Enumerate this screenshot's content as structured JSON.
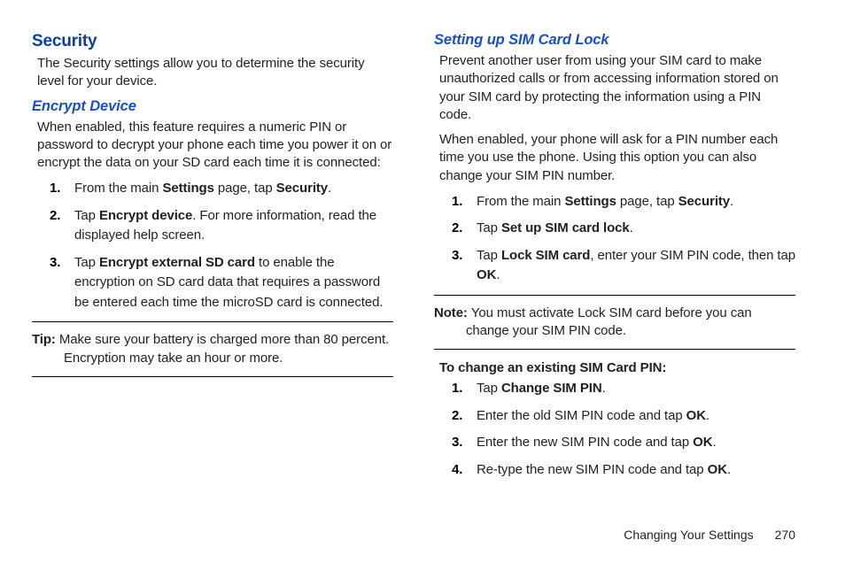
{
  "left": {
    "h1": "Security",
    "intro": "The Security settings allow you to determine the security level for your device.",
    "h2": "Encrypt Device",
    "desc": "When enabled, this feature requires a numeric PIN or password to decrypt your phone each time you power it on or encrypt the data on your SD card each time it is connected:",
    "steps": {
      "s1_a": "From the main ",
      "s1_b": "Settings",
      "s1_c": " page, tap ",
      "s1_d": "Security",
      "s1_e": ".",
      "s2_a": "Tap ",
      "s2_b": "Encrypt device",
      "s2_c": ". For more information, read the displayed help screen.",
      "s3_a": "Tap ",
      "s3_b": "Encrypt external SD card",
      "s3_c": " to enable the encryption on SD card data that requires a password be entered each time the microSD card is connected."
    },
    "tip_label": "Tip: ",
    "tip_text": "Make sure your battery is charged more than 80 percent. Encryption may take an hour or more."
  },
  "right": {
    "h2": "Setting up SIM Card Lock",
    "p1": "Prevent another user from using your SIM card to make unauthorized calls or from accessing information stored on your SIM card by protecting the information using a PIN code.",
    "p2": "When enabled, your phone will ask for a PIN number each time you use the phone. Using this option you can also change your SIM PIN number.",
    "steps": {
      "s1_a": "From the main ",
      "s1_b": "Settings",
      "s1_c": " page, tap ",
      "s1_d": "Security",
      "s1_e": ".",
      "s2_a": "Tap ",
      "s2_b": "Set up SIM card lock",
      "s2_c": ".",
      "s3_a": "Tap ",
      "s3_b": "Lock SIM card",
      "s3_c": ", enter your SIM PIN code, then tap ",
      "s3_d": "OK",
      "s3_e": "."
    },
    "note_label": "Note: ",
    "note_text": "You must activate Lock SIM card before you can change your SIM PIN code.",
    "subhead": "To change an existing SIM Card PIN:",
    "steps2": {
      "s1_a": "Tap ",
      "s1_b": "Change SIM PIN",
      "s1_c": ".",
      "s2_a": "Enter the old SIM PIN code and tap ",
      "s2_b": "OK",
      "s2_c": ".",
      "s3_a": "Enter the new SIM PIN code and tap ",
      "s3_b": "OK",
      "s3_c": ".",
      "s4_a": "Re-type the new SIM PIN code and tap ",
      "s4_b": "OK",
      "s4_c": "."
    }
  },
  "footer": {
    "chapter": "Changing Your Settings",
    "page": "270"
  }
}
